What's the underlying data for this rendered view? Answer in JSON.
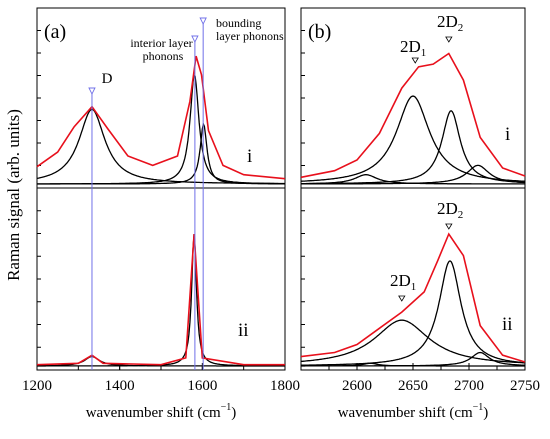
{
  "chart_data": [
    {
      "type": "line",
      "panel": "a",
      "panel_label": "(a)",
      "xlabel": "wavenumber shift (cm",
      "xlabel_sup": "−1",
      "xlabel_tail": ")",
      "xlim": [
        1200,
        1800
      ],
      "x_ticks": [
        1200,
        1400,
        1600,
        1800
      ],
      "ylabel": "Raman signal (arb. units)",
      "markers": [
        {
          "label": "D",
          "x": 1333
        },
        {
          "label": "interior layer phonons",
          "x": 1582
        },
        {
          "label": "bounding layer phonons",
          "x": 1602
        }
      ],
      "subpanels": [
        {
          "name": "i",
          "measured": [
            {
              "x": 1200,
              "y": 0.13
            },
            {
              "x": 1250,
              "y": 0.24
            },
            {
              "x": 1290,
              "y": 0.43
            },
            {
              "x": 1333,
              "y": 0.58
            },
            {
              "x": 1370,
              "y": 0.42
            },
            {
              "x": 1420,
              "y": 0.21
            },
            {
              "x": 1480,
              "y": 0.14
            },
            {
              "x": 1540,
              "y": 0.21
            },
            {
              "x": 1570,
              "y": 0.62
            },
            {
              "x": 1585,
              "y": 0.96
            },
            {
              "x": 1598,
              "y": 0.82
            },
            {
              "x": 1615,
              "y": 0.4
            },
            {
              "x": 1650,
              "y": 0.14
            },
            {
              "x": 1700,
              "y": 0.07
            },
            {
              "x": 1800,
              "y": 0.04
            }
          ],
          "components": [
            {
              "center": 1333,
              "height": 0.56,
              "width": 38
            },
            {
              "center": 1581,
              "height": 0.82,
              "width": 13
            },
            {
              "center": 1603,
              "height": 0.45,
              "width": 10
            }
          ]
        },
        {
          "name": "ii",
          "measured": [
            {
              "x": 1200,
              "y": 0.01
            },
            {
              "x": 1300,
              "y": 0.02
            },
            {
              "x": 1333,
              "y": 0.08
            },
            {
              "x": 1360,
              "y": 0.02
            },
            {
              "x": 1500,
              "y": 0.01
            },
            {
              "x": 1560,
              "y": 0.06
            },
            {
              "x": 1580,
              "y": 0.98
            },
            {
              "x": 1600,
              "y": 0.06
            },
            {
              "x": 1700,
              "y": 0.01
            },
            {
              "x": 1800,
              "y": 0.01
            }
          ],
          "components": [
            {
              "center": 1333,
              "height": 0.07,
              "width": 22
            },
            {
              "center": 1580,
              "height": 0.98,
              "width": 7
            }
          ]
        }
      ]
    },
    {
      "type": "line",
      "panel": "b",
      "panel_label": "(b)",
      "xlabel": "wavenumber shift (cm",
      "xlabel_sup": "−1",
      "xlabel_tail": ")",
      "xlim": [
        2550,
        2750
      ],
      "x_ticks": [
        2600,
        2650,
        2700,
        2750
      ],
      "subpanels": [
        {
          "name": "i",
          "markers": [
            {
              "label": "2D",
              "sub": "1",
              "x": 2652
            },
            {
              "label": "2D",
              "sub": "2",
              "x": 2682
            }
          ],
          "measured": [
            {
              "x": 2550,
              "y": 0.05
            },
            {
              "x": 2580,
              "y": 0.1
            },
            {
              "x": 2600,
              "y": 0.18
            },
            {
              "x": 2620,
              "y": 0.38
            },
            {
              "x": 2640,
              "y": 0.72
            },
            {
              "x": 2655,
              "y": 0.88
            },
            {
              "x": 2668,
              "y": 0.9
            },
            {
              "x": 2682,
              "y": 0.98
            },
            {
              "x": 2695,
              "y": 0.78
            },
            {
              "x": 2710,
              "y": 0.35
            },
            {
              "x": 2730,
              "y": 0.12
            },
            {
              "x": 2750,
              "y": 0.06
            }
          ],
          "components": [
            {
              "center": 2650,
              "height": 0.66,
              "width": 18
            },
            {
              "center": 2684,
              "height": 0.55,
              "width": 10
            },
            {
              "center": 2608,
              "height": 0.07,
              "width": 12
            },
            {
              "center": 2708,
              "height": 0.14,
              "width": 12
            }
          ]
        },
        {
          "name": "ii",
          "markers": [
            {
              "label": "2D",
              "sub": "1",
              "x": 2640
            },
            {
              "label": "2D",
              "sub": "2",
              "x": 2682
            }
          ],
          "measured": [
            {
              "x": 2550,
              "y": 0.07
            },
            {
              "x": 2580,
              "y": 0.1
            },
            {
              "x": 2600,
              "y": 0.16
            },
            {
              "x": 2620,
              "y": 0.28
            },
            {
              "x": 2640,
              "y": 0.4
            },
            {
              "x": 2660,
              "y": 0.55
            },
            {
              "x": 2672,
              "y": 0.78
            },
            {
              "x": 2682,
              "y": 0.98
            },
            {
              "x": 2695,
              "y": 0.82
            },
            {
              "x": 2710,
              "y": 0.3
            },
            {
              "x": 2730,
              "y": 0.08
            },
            {
              "x": 2750,
              "y": 0.03
            }
          ],
          "components": [
            {
              "center": 2640,
              "height": 0.34,
              "width": 30
            },
            {
              "center": 2683,
              "height": 0.78,
              "width": 12
            },
            {
              "center": 2612,
              "height": 0.02,
              "width": 8
            },
            {
              "center": 2710,
              "height": 0.1,
              "width": 10
            }
          ]
        }
      ]
    }
  ],
  "colors": {
    "measured": "#e8101c",
    "component": "#000000",
    "marker": "#7070e8"
  }
}
